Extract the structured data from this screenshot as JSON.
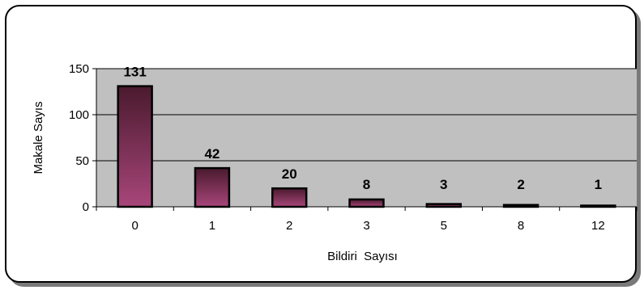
{
  "chart_data": {
    "type": "bar",
    "categories": [
      "0",
      "1",
      "2",
      "3",
      "5",
      "8",
      "12"
    ],
    "values": [
      131,
      42,
      20,
      8,
      3,
      2,
      1
    ],
    "title": "",
    "xlabel": "Bildiri  Sayısı",
    "ylabel": "Makale Sayıs",
    "ylim": [
      0,
      150
    ],
    "yticks": [
      0,
      50,
      100,
      150
    ],
    "grid": true,
    "legend": "none",
    "colors": {
      "plot_background": "#c0c0c0",
      "bar_top": "#4a1a2e",
      "bar_bottom": "#a8467a",
      "bar_outline": "#000000",
      "gridline": "#000000"
    }
  }
}
